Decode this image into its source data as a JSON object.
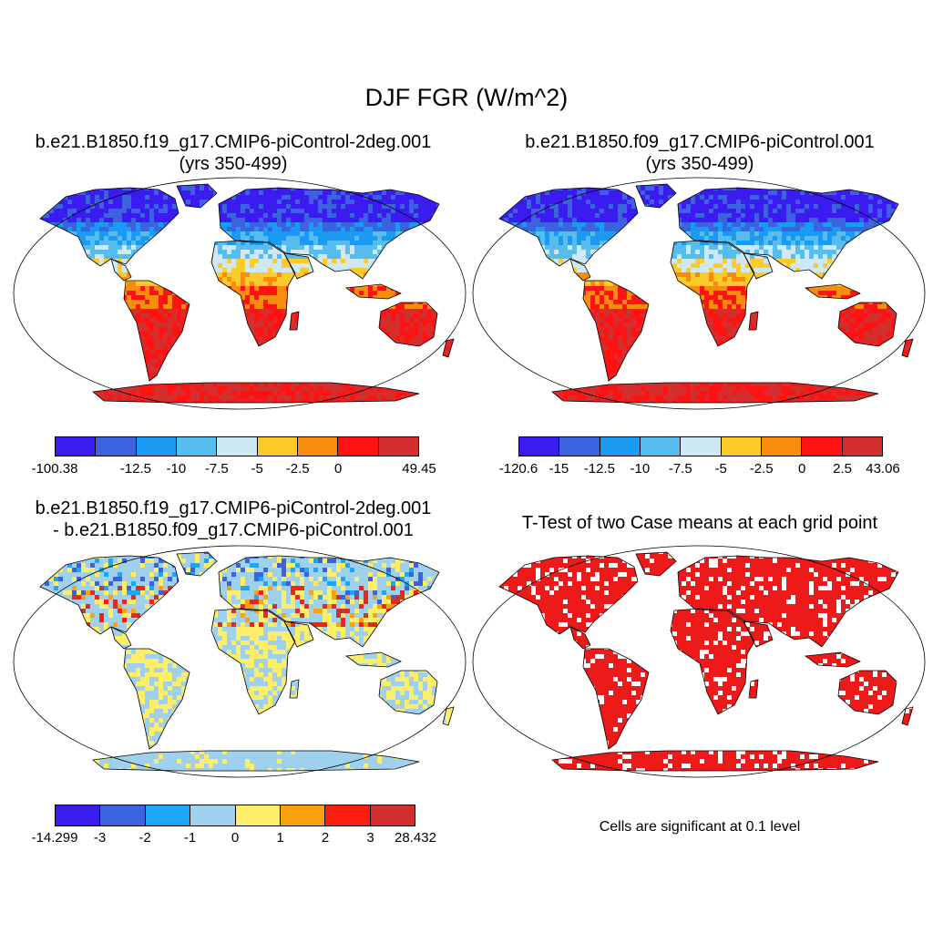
{
  "title": "DJF FGR (W/m^2)",
  "colors": {
    "ocean": "#ffffff",
    "land_outline": "#000000",
    "significant": "#ee1a1a"
  },
  "panels": [
    {
      "id": "p1",
      "title_lines": [
        "b.e21.B1850.f19_g17.CMIP6-piControl-2deg.001",
        "(yrs 350-499)"
      ],
      "colorbar": {
        "colors": [
          "#3b1cf0",
          "#3d62e0",
          "#1b9af3",
          "#56bdee",
          "#cfe8f6",
          "#fbcb2a",
          "#f88c0c",
          "#fe1212",
          "#d32f2f"
        ],
        "labels": [
          "-100.38",
          "",
          "-12.5",
          "-10",
          "-7.5",
          "-5",
          "-2.5",
          "0",
          "",
          "49.45"
        ]
      }
    },
    {
      "id": "p2",
      "title_lines": [
        "b.e21.B1850.f09_g17.CMIP6-piControl.001",
        "(yrs 350-499)"
      ],
      "colorbar": {
        "colors": [
          "#3b1cf0",
          "#3d62e0",
          "#1b9af3",
          "#56bdee",
          "#cfe8f6",
          "#fbcb2a",
          "#f88c0c",
          "#fe1212",
          "#d32f2f"
        ],
        "labels": [
          "-120.6",
          "-15",
          "-12.5",
          "-10",
          "-7.5",
          "-5",
          "-2.5",
          "0",
          "2.5",
          "43.06"
        ]
      }
    },
    {
      "id": "p3",
      "title_lines": [
        "b.e21.B1850.f19_g17.CMIP6-piControl-2deg.001",
        "- b.e21.B1850.f09_g17.CMIP6-piControl.001"
      ],
      "colorbar": {
        "colors": [
          "#3b1cf0",
          "#3d62e0",
          "#1ba7f3",
          "#9fd0ee",
          "#fdee6a",
          "#f8a20e",
          "#fe1e10",
          "#d32f2f"
        ],
        "labels": [
          "-14.299",
          "-3",
          "-2",
          "-1",
          "0",
          "1",
          "2",
          "3",
          "28.432"
        ]
      }
    },
    {
      "id": "p4",
      "title_lines": [
        "T-Test of two Case means at each grid point"
      ],
      "note": "Cells are significant at 0.1 level"
    }
  ]
}
